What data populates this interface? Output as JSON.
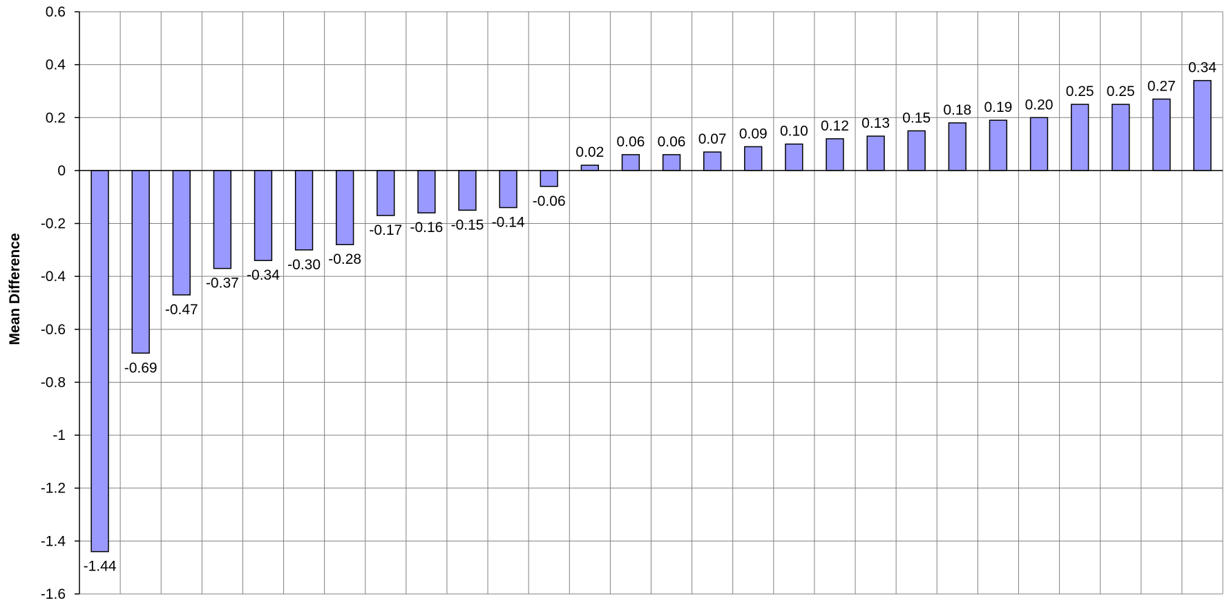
{
  "chart_data": {
    "type": "bar",
    "title": "",
    "xlabel": "",
    "ylabel": "Mean Difference",
    "ylim": [
      -1.6,
      0.6
    ],
    "yticks": [
      0.6,
      0.4,
      0.2,
      0,
      -0.2,
      -0.4,
      -0.6,
      -0.8,
      -1,
      -1.2,
      -1.4,
      -1.6
    ],
    "ytick_labels": [
      "0.6",
      "0.4",
      "0.2",
      "0",
      "-0.2",
      "-0.4",
      "-0.6",
      "-0.8",
      "-1",
      "-1.2",
      "-1.4",
      "-1.6"
    ],
    "grid": true,
    "values": [
      -1.44,
      -0.69,
      -0.47,
      -0.37,
      -0.34,
      -0.3,
      -0.28,
      -0.17,
      -0.16,
      -0.15,
      -0.14,
      -0.06,
      0.02,
      0.06,
      0.06,
      0.07,
      0.09,
      0.1,
      0.12,
      0.13,
      0.15,
      0.18,
      0.19,
      0.2,
      0.25,
      0.25,
      0.27,
      0.34
    ],
    "data_labels": [
      "-1.44",
      "-0.69",
      "-0.47",
      "-0.37",
      "-0.34",
      "-0.30",
      "-0.28",
      "-0.17",
      "-0.16",
      "-0.15",
      "-0.14",
      "-0.06",
      "0.02",
      "0.06",
      "0.06",
      "0.07",
      "0.09",
      "0.10",
      "0.12",
      "0.13",
      "0.15",
      "0.18",
      "0.19",
      "0.20",
      "0.25",
      "0.25",
      "0.27",
      "0.34"
    ],
    "colors": {
      "bar_fill": "#9999ff",
      "bar_stroke": "#000000",
      "grid": "#808080",
      "axis": "#000000"
    }
  }
}
